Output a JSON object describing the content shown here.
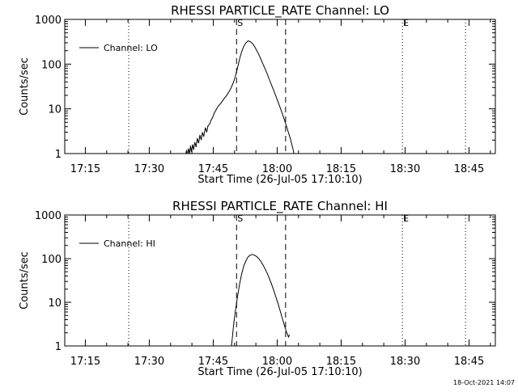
{
  "footer": {
    "timestamp": "18-Oct-2021 14:07"
  },
  "chart_data": [
    {
      "type": "line",
      "title": "RHESSI PARTICLE_RATE Channel: LO",
      "xlabel": "Start Time (26-Jul-05 17:10:10)",
      "ylabel": "Counts/sec",
      "x_unit": "minutes after 17:10:10",
      "xlim": [
        0,
        101
      ],
      "ylim": [
        1,
        1000
      ],
      "yscale": "log",
      "grid": false,
      "legend_position": "top-left",
      "x_ticks": [
        {
          "label": "17:15",
          "x": 4.83
        },
        {
          "label": "17:30",
          "x": 19.83
        },
        {
          "label": "17:45",
          "x": 34.83
        },
        {
          "label": "18:00",
          "x": 49.83
        },
        {
          "label": "18:15",
          "x": 64.83
        },
        {
          "label": "18:30",
          "x": 79.83
        },
        {
          "label": "18:45",
          "x": 94.83
        }
      ],
      "y_ticks": [
        {
          "label": "1",
          "y": 1
        },
        {
          "label": "10",
          "y": 10
        },
        {
          "label": "100",
          "y": 100
        },
        {
          "label": "1000",
          "y": 1000
        }
      ],
      "vlines": [
        {
          "x": 15.0,
          "style": "dotted",
          "label": ""
        },
        {
          "x": 40.3,
          "style": "dashed",
          "label": "S"
        },
        {
          "x": 51.8,
          "style": "dashed",
          "label": ""
        },
        {
          "x": 79.2,
          "style": "dotted",
          "label": "E"
        },
        {
          "x": 94.0,
          "style": "dotted",
          "label": ""
        }
      ],
      "series": [
        {
          "name": "Channel: LO",
          "x": [
            28.4,
            28.6,
            28.8,
            29.0,
            29.3,
            29.5,
            29.7,
            30.0,
            30.2,
            30.5,
            30.8,
            31.1,
            31.4,
            31.7,
            32.0,
            32.3,
            32.6,
            33.0,
            33.3,
            33.6,
            34.0,
            34.3,
            34.7,
            35.0,
            35.5,
            36.0,
            36.5,
            37.0,
            37.5,
            38.0,
            38.5,
            39.0,
            39.5,
            40.0,
            40.5,
            41.0,
            41.5,
            42.0,
            42.5,
            43.0,
            43.5,
            44.0,
            44.5,
            45.0,
            45.5,
            46.0,
            46.5,
            47.0,
            47.5,
            48.0,
            48.5,
            49.0,
            49.5,
            50.0,
            50.5,
            51.0,
            51.5,
            52.0,
            52.5,
            53.0,
            53.5,
            54.0
          ],
          "y": [
            1.0,
            1.2,
            0.8,
            1.3,
            1.0,
            1.5,
            1.1,
            1.6,
            1.2,
            1.8,
            1.4,
            2.2,
            1.7,
            2.6,
            2.0,
            3.0,
            2.4,
            3.8,
            3.0,
            4.2,
            4.6,
            5.5,
            6.5,
            7.8,
            9.5,
            11.5,
            13.0,
            15.0,
            17.5,
            20.0,
            24.0,
            29.0,
            38.0,
            52.0,
            80.0,
            130.0,
            190.0,
            250.0,
            300.0,
            330.0,
            320.0,
            290.0,
            250.0,
            205.0,
            165.0,
            130.0,
            100.0,
            78.0,
            60.0,
            45.0,
            34.0,
            26.0,
            19.5,
            14.5,
            10.8,
            8.0,
            5.8,
            4.1,
            2.9,
            2.0,
            1.3,
            0.8
          ]
        }
      ]
    },
    {
      "type": "line",
      "title": "RHESSI PARTICLE_RATE Channel: HI",
      "xlabel": "Start Time (26-Jul-05 17:10:10)",
      "ylabel": "Counts/sec",
      "x_unit": "minutes after 17:10:10",
      "xlim": [
        0,
        101
      ],
      "ylim": [
        1,
        1000
      ],
      "yscale": "log",
      "grid": false,
      "legend_position": "top-left",
      "x_ticks": [
        {
          "label": "17:15",
          "x": 4.83
        },
        {
          "label": "17:30",
          "x": 19.83
        },
        {
          "label": "17:45",
          "x": 34.83
        },
        {
          "label": "18:00",
          "x": 49.83
        },
        {
          "label": "18:15",
          "x": 64.83
        },
        {
          "label": "18:30",
          "x": 79.83
        },
        {
          "label": "18:45",
          "x": 94.83
        }
      ],
      "y_ticks": [
        {
          "label": "1",
          "y": 1
        },
        {
          "label": "10",
          "y": 10
        },
        {
          "label": "100",
          "y": 100
        },
        {
          "label": "1000",
          "y": 1000
        }
      ],
      "vlines": [
        {
          "x": 15.0,
          "style": "dotted",
          "label": ""
        },
        {
          "x": 40.3,
          "style": "dashed",
          "label": "S"
        },
        {
          "x": 51.8,
          "style": "dashed",
          "label": ""
        },
        {
          "x": 79.2,
          "style": "dotted",
          "label": "E"
        },
        {
          "x": 94.0,
          "style": "dotted",
          "label": ""
        }
      ],
      "series": [
        {
          "name": "Channel: HI",
          "x": [
            39.0,
            39.3,
            39.6,
            40.0,
            40.5,
            41.0,
            41.5,
            42.0,
            42.5,
            43.0,
            43.5,
            44.0,
            44.5,
            45.0,
            45.5,
            46.0,
            46.5,
            47.0,
            47.5,
            48.0,
            48.5,
            49.0,
            49.5,
            50.0,
            50.5,
            51.0,
            51.5,
            52.0,
            52.5,
            52.7
          ],
          "y": [
            0.8,
            1.5,
            3.0,
            6.0,
            13.0,
            26.0,
            45.0,
            68.0,
            90.0,
            110.0,
            120.0,
            125.0,
            120.0,
            112.0,
            100.0,
            86.0,
            72.0,
            58.0,
            46.0,
            35.0,
            26.0,
            19.0,
            13.5,
            9.5,
            6.5,
            4.4,
            3.0,
            2.1,
            1.6,
            1.8
          ]
        }
      ]
    }
  ]
}
